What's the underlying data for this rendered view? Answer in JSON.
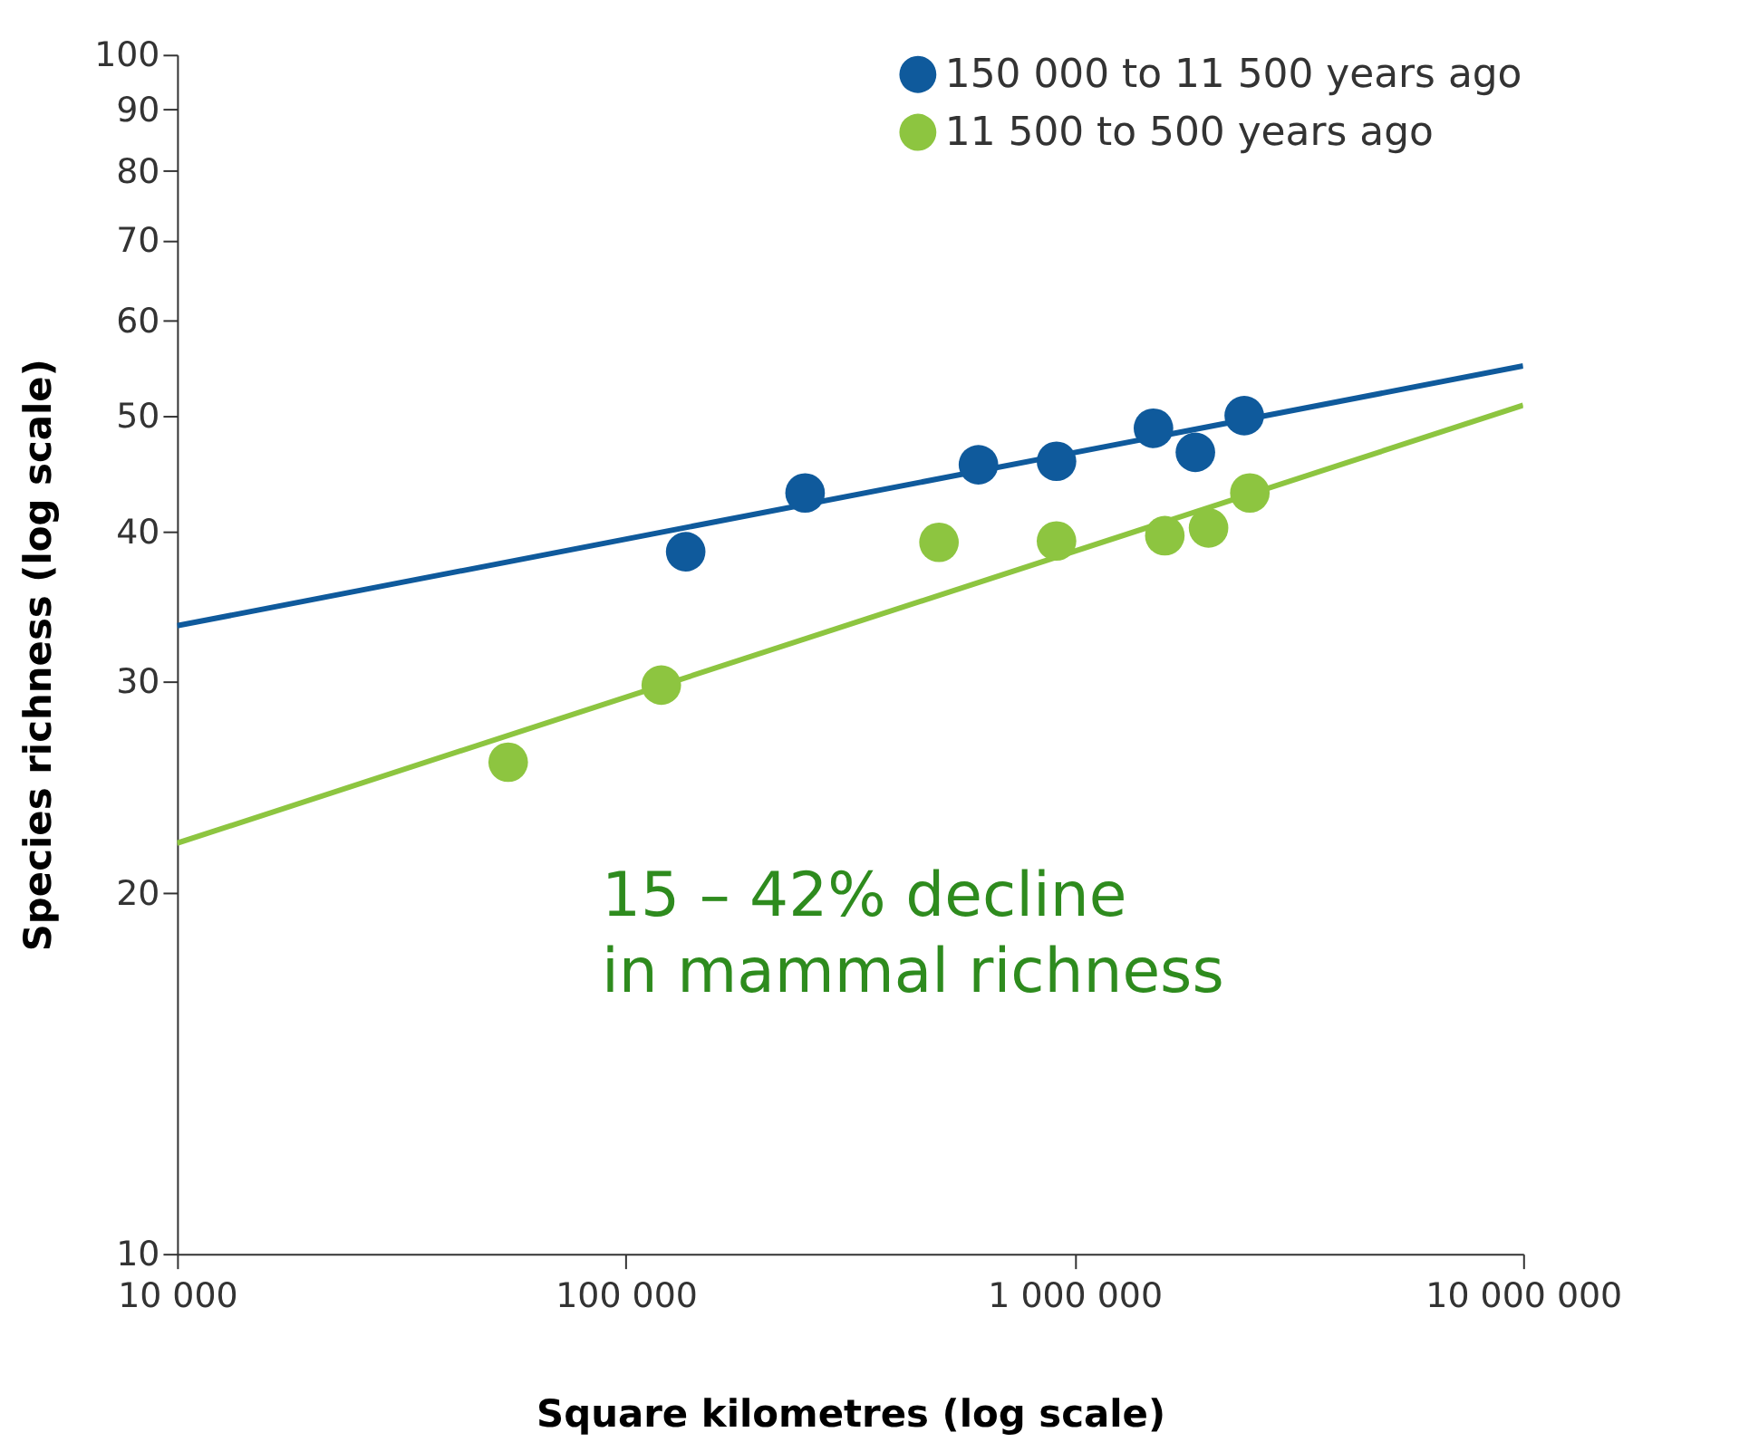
{
  "chart_data": {
    "type": "scatter",
    "xlabel": "Square kilometres (log scale)",
    "ylabel": "Species richness (log scale)",
    "series": [
      {
        "name": "150 000 to 11 500 years ago",
        "color": "#0f5a9c",
        "x": [
          136000,
          251000,
          611000,
          912000,
          1500000,
          1860000,
          2390000
        ],
        "values": [
          38.5,
          43.1,
          45.5,
          45.8,
          48.8,
          46.6,
          50.0
        ]
      },
      {
        "name": "11 500 to 500 years ago",
        "color": "#8dc540",
        "x": [
          54700,
          120000,
          499000,
          912000,
          1590000,
          1990000,
          2460000
        ],
        "values": [
          25.7,
          29.8,
          39.2,
          39.3,
          39.7,
          40.3,
          43.1
        ]
      },
      {
        "type": "line",
        "marker": "none",
        "color": "#0f5a9c",
        "x": [
          10000,
          10000000
        ],
        "values": [
          33.4,
          55.0
        ]
      },
      {
        "type": "line",
        "marker": "none",
        "color": "#8dc540",
        "x": [
          10000,
          10000000
        ],
        "values": [
          22.0,
          51.0
        ]
      }
    ],
    "xlim": [
      10000,
      10000000
    ],
    "ylim": [
      10,
      100
    ],
    "xticks": [
      {
        "value": 10000,
        "label": "10 000"
      },
      {
        "value": 100000,
        "label": "100 000"
      },
      {
        "value": 1000000,
        "label": "1 000 000"
      },
      {
        "value": 10000000,
        "label": "10 000 000"
      }
    ],
    "yticks": [
      10,
      20,
      30,
      40,
      50,
      60,
      70,
      80,
      90,
      100
    ],
    "log": "xy",
    "grid": false,
    "legend": "top right",
    "marker": "circle",
    "line_style": "solid",
    "annotations": [
      "15 – 42% decline in mammal richness"
    ]
  }
}
